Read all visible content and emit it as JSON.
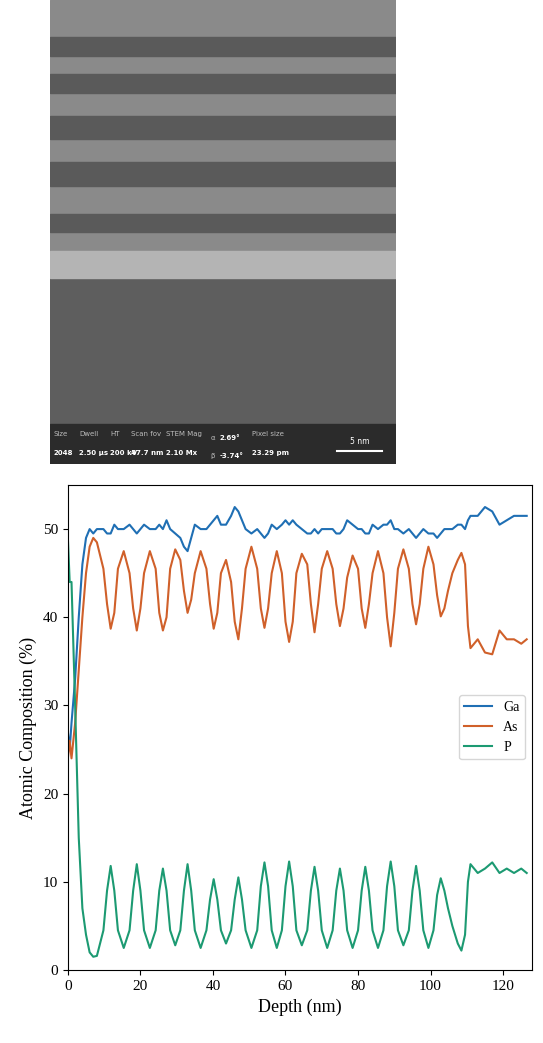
{
  "image": {
    "info_bar": [
      {
        "label": "Size",
        "value": "2048"
      },
      {
        "label": "Dwell",
        "value": "2.50 µs"
      },
      {
        "label": "HT",
        "value": "200 kV"
      },
      {
        "label": "Scan fov",
        "value": "47.7 nm"
      },
      {
        "label": "STEM Mag",
        "value": "2.10 Mx"
      },
      {
        "label": "α",
        "value": "2.69°"
      },
      {
        "label": "β",
        "value": "-3.74°"
      },
      {
        "label": "Pixel size",
        "value": "23.29 pm"
      }
    ],
    "scale_bar": "5 nm"
  },
  "chart_data": {
    "type": "line",
    "xlabel": "Depth (nm)",
    "ylabel": "Atomic Composition (%)",
    "xlim": [
      0,
      128
    ],
    "xticks": [
      0,
      20,
      40,
      60,
      80,
      100,
      120
    ],
    "ylim": [
      0,
      55
    ],
    "yticks": [
      0,
      10,
      20,
      30,
      40,
      50
    ],
    "legend": "center right",
    "grid": false,
    "x": [
      0,
      0.5,
      1,
      2,
      3,
      4,
      5,
      6,
      7,
      8,
      9.8,
      10.8,
      11.8,
      12.8,
      13.8,
      15.4,
      17,
      18,
      19,
      20,
      21,
      22.6,
      24.2,
      25.2,
      26.2,
      27.2,
      28.2,
      29.6,
      31,
      32,
      33,
      34,
      35,
      36.6,
      38.2,
      39.2,
      40.2,
      41.2,
      42.2,
      43.6,
      45,
      46,
      47,
      48,
      49,
      50.6,
      52.2,
      53.2,
      54.2,
      55.2,
      56.2,
      57.6,
      59,
      60,
      61,
      62,
      63,
      64.5,
      66,
      67,
      68,
      69,
      70,
      71.5,
      73,
      74,
      75,
      76,
      77,
      78.5,
      80,
      81,
      82,
      83,
      84,
      85.5,
      87,
      88,
      89,
      90,
      91,
      92.5,
      94,
      95,
      96,
      97,
      98,
      99.4,
      100.8,
      101.8,
      102.8,
      103.8,
      104.8,
      106,
      107.5,
      108.5,
      109.5,
      110.3,
      111,
      113,
      115,
      117,
      119,
      121,
      123,
      125,
      126.5
    ],
    "series": [
      {
        "name": "Ga",
        "color": "#1f6fb4",
        "values": [
          27,
          25,
          28,
          33,
          40,
          46,
          49,
          50,
          49.5,
          50,
          50,
          49.5,
          49.5,
          50.5,
          50,
          50,
          50.5,
          50,
          49.5,
          50,
          50.5,
          50,
          50,
          50.5,
          50,
          51,
          50,
          49.5,
          49,
          48,
          47.5,
          49,
          50.5,
          50,
          50,
          50.5,
          51,
          51.5,
          50.5,
          50.5,
          51.5,
          52.5,
          52,
          51,
          50,
          49.5,
          50,
          49.5,
          49,
          49.5,
          50.5,
          50,
          50.5,
          51,
          50.5,
          51,
          50.5,
          50,
          49.5,
          49.5,
          50,
          49.5,
          50,
          50,
          50,
          49.5,
          49.5,
          50,
          51,
          50.5,
          50,
          50,
          49.5,
          49.5,
          50.5,
          50,
          50.5,
          50.5,
          51,
          50,
          50,
          49.5,
          50,
          49.5,
          49,
          49.5,
          50,
          49.5,
          49.5,
          49,
          49.5,
          50,
          50,
          50,
          50.5,
          50.5,
          50,
          51,
          51.5,
          51.5,
          52.5,
          52,
          50.5,
          51,
          51.5,
          51.5,
          51.5
        ]
      },
      {
        "name": "As",
        "color": "#d0602a",
        "values": [
          24,
          26,
          24,
          28,
          34,
          40,
          45,
          48,
          49,
          48.5,
          45.5,
          41.5,
          38.7,
          40.5,
          45.5,
          47.5,
          45,
          41,
          38.5,
          41,
          45,
          47.5,
          45.5,
          40.5,
          38.5,
          40,
          45.5,
          47.7,
          46.5,
          43,
          40.5,
          42,
          45,
          47.5,
          45.5,
          41.5,
          38.7,
          40.5,
          45,
          46.5,
          44,
          39.5,
          37.5,
          41,
          45.5,
          48,
          45.5,
          41,
          38.8,
          41,
          45,
          47.5,
          45,
          39.5,
          37.2,
          39.5,
          45,
          47.2,
          46,
          41.5,
          38.3,
          41.5,
          45.5,
          47.5,
          45.5,
          41.5,
          39,
          41,
          44.5,
          47,
          45.5,
          41,
          38.8,
          41.5,
          45,
          47.5,
          45,
          40,
          36.7,
          40.5,
          45.5,
          47.7,
          45.5,
          41.5,
          39.2,
          41.5,
          45.5,
          48,
          46,
          42.5,
          40.1,
          41,
          43,
          45,
          46.5,
          47.3,
          46,
          39,
          36.5,
          37.5,
          36,
          35.8,
          38.5,
          37.5,
          37.5,
          37,
          37.5
        ]
      },
      {
        "name": "P",
        "color": "#1c9a72",
        "values": [
          49,
          44,
          44,
          30,
          15,
          7,
          4,
          2,
          1.5,
          1.6,
          4.5,
          9,
          11.8,
          9,
          4.5,
          2.5,
          4.5,
          9,
          12,
          9,
          4.5,
          2.5,
          4.5,
          9,
          11.5,
          9,
          4.5,
          2.8,
          4.5,
          9,
          12,
          9,
          4.5,
          2.5,
          4.5,
          8,
          10.3,
          8,
          4.5,
          3,
          4.5,
          8,
          10.5,
          8,
          4.5,
          2.5,
          4.5,
          9.5,
          12.2,
          9.5,
          4.5,
          2.5,
          4.5,
          9.5,
          12.3,
          9.5,
          4.5,
          2.8,
          4.5,
          9,
          11.7,
          9,
          4.5,
          2.5,
          4.5,
          9,
          11.5,
          9,
          4.5,
          2.5,
          4.5,
          9,
          11.7,
          9,
          4.5,
          2.5,
          4.5,
          9.5,
          12.3,
          9.5,
          4.5,
          2.8,
          4.5,
          9,
          11.8,
          9,
          4.5,
          2.5,
          4.5,
          8.5,
          10.4,
          9,
          7,
          5,
          3,
          2.2,
          4,
          10,
          12,
          11,
          11.5,
          12.2,
          11,
          11.5,
          11,
          11.5,
          11
        ]
      }
    ]
  }
}
